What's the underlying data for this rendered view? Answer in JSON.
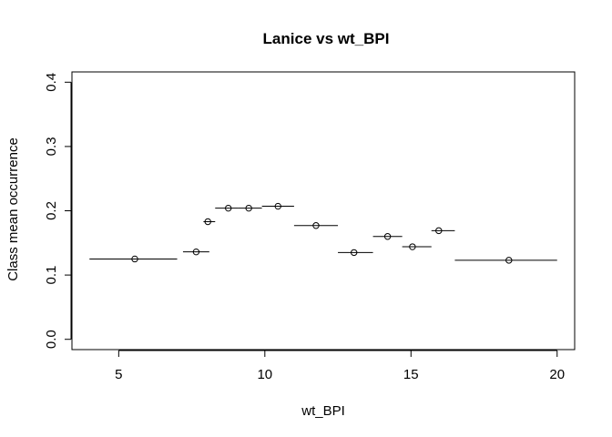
{
  "chart_data": {
    "type": "scatter",
    "title": "Lanice vs wt_BPI",
    "xlabel": "wt_BPI",
    "ylabel": "Class mean occurrence",
    "xlim": [
      3.4,
      20.6
    ],
    "ylim": [
      -0.016,
      0.416
    ],
    "xticks": [
      5,
      10,
      15,
      20
    ],
    "yticks": [
      0.0,
      0.1,
      0.2,
      0.3,
      0.4
    ],
    "ytick_labels": [
      "0.0",
      "0.1",
      "0.2",
      "0.3",
      "0.4"
    ],
    "grid": false,
    "legend": "none",
    "points": [
      {
        "x": 5.55,
        "y": 0.125,
        "x_from": 4.0,
        "x_to": 7.0
      },
      {
        "x": 7.65,
        "y": 0.136,
        "x_from": 7.2,
        "x_to": 8.1
      },
      {
        "x": 8.05,
        "y": 0.183,
        "x_from": 7.9,
        "x_to": 8.3
      },
      {
        "x": 8.75,
        "y": 0.204,
        "x_from": 8.3,
        "x_to": 9.1
      },
      {
        "x": 9.45,
        "y": 0.204,
        "x_from": 9.1,
        "x_to": 9.9
      },
      {
        "x": 10.45,
        "y": 0.207,
        "x_from": 9.9,
        "x_to": 11.0
      },
      {
        "x": 11.75,
        "y": 0.177,
        "x_from": 11.0,
        "x_to": 12.5
      },
      {
        "x": 13.05,
        "y": 0.135,
        "x_from": 12.5,
        "x_to": 13.7
      },
      {
        "x": 14.2,
        "y": 0.16,
        "x_from": 13.7,
        "x_to": 14.7
      },
      {
        "x": 15.05,
        "y": 0.144,
        "x_from": 14.7,
        "x_to": 15.7
      },
      {
        "x": 15.95,
        "y": 0.169,
        "x_from": 15.7,
        "x_to": 16.5
      },
      {
        "x": 18.35,
        "y": 0.123,
        "x_from": 16.5,
        "x_to": 20.0
      }
    ]
  }
}
